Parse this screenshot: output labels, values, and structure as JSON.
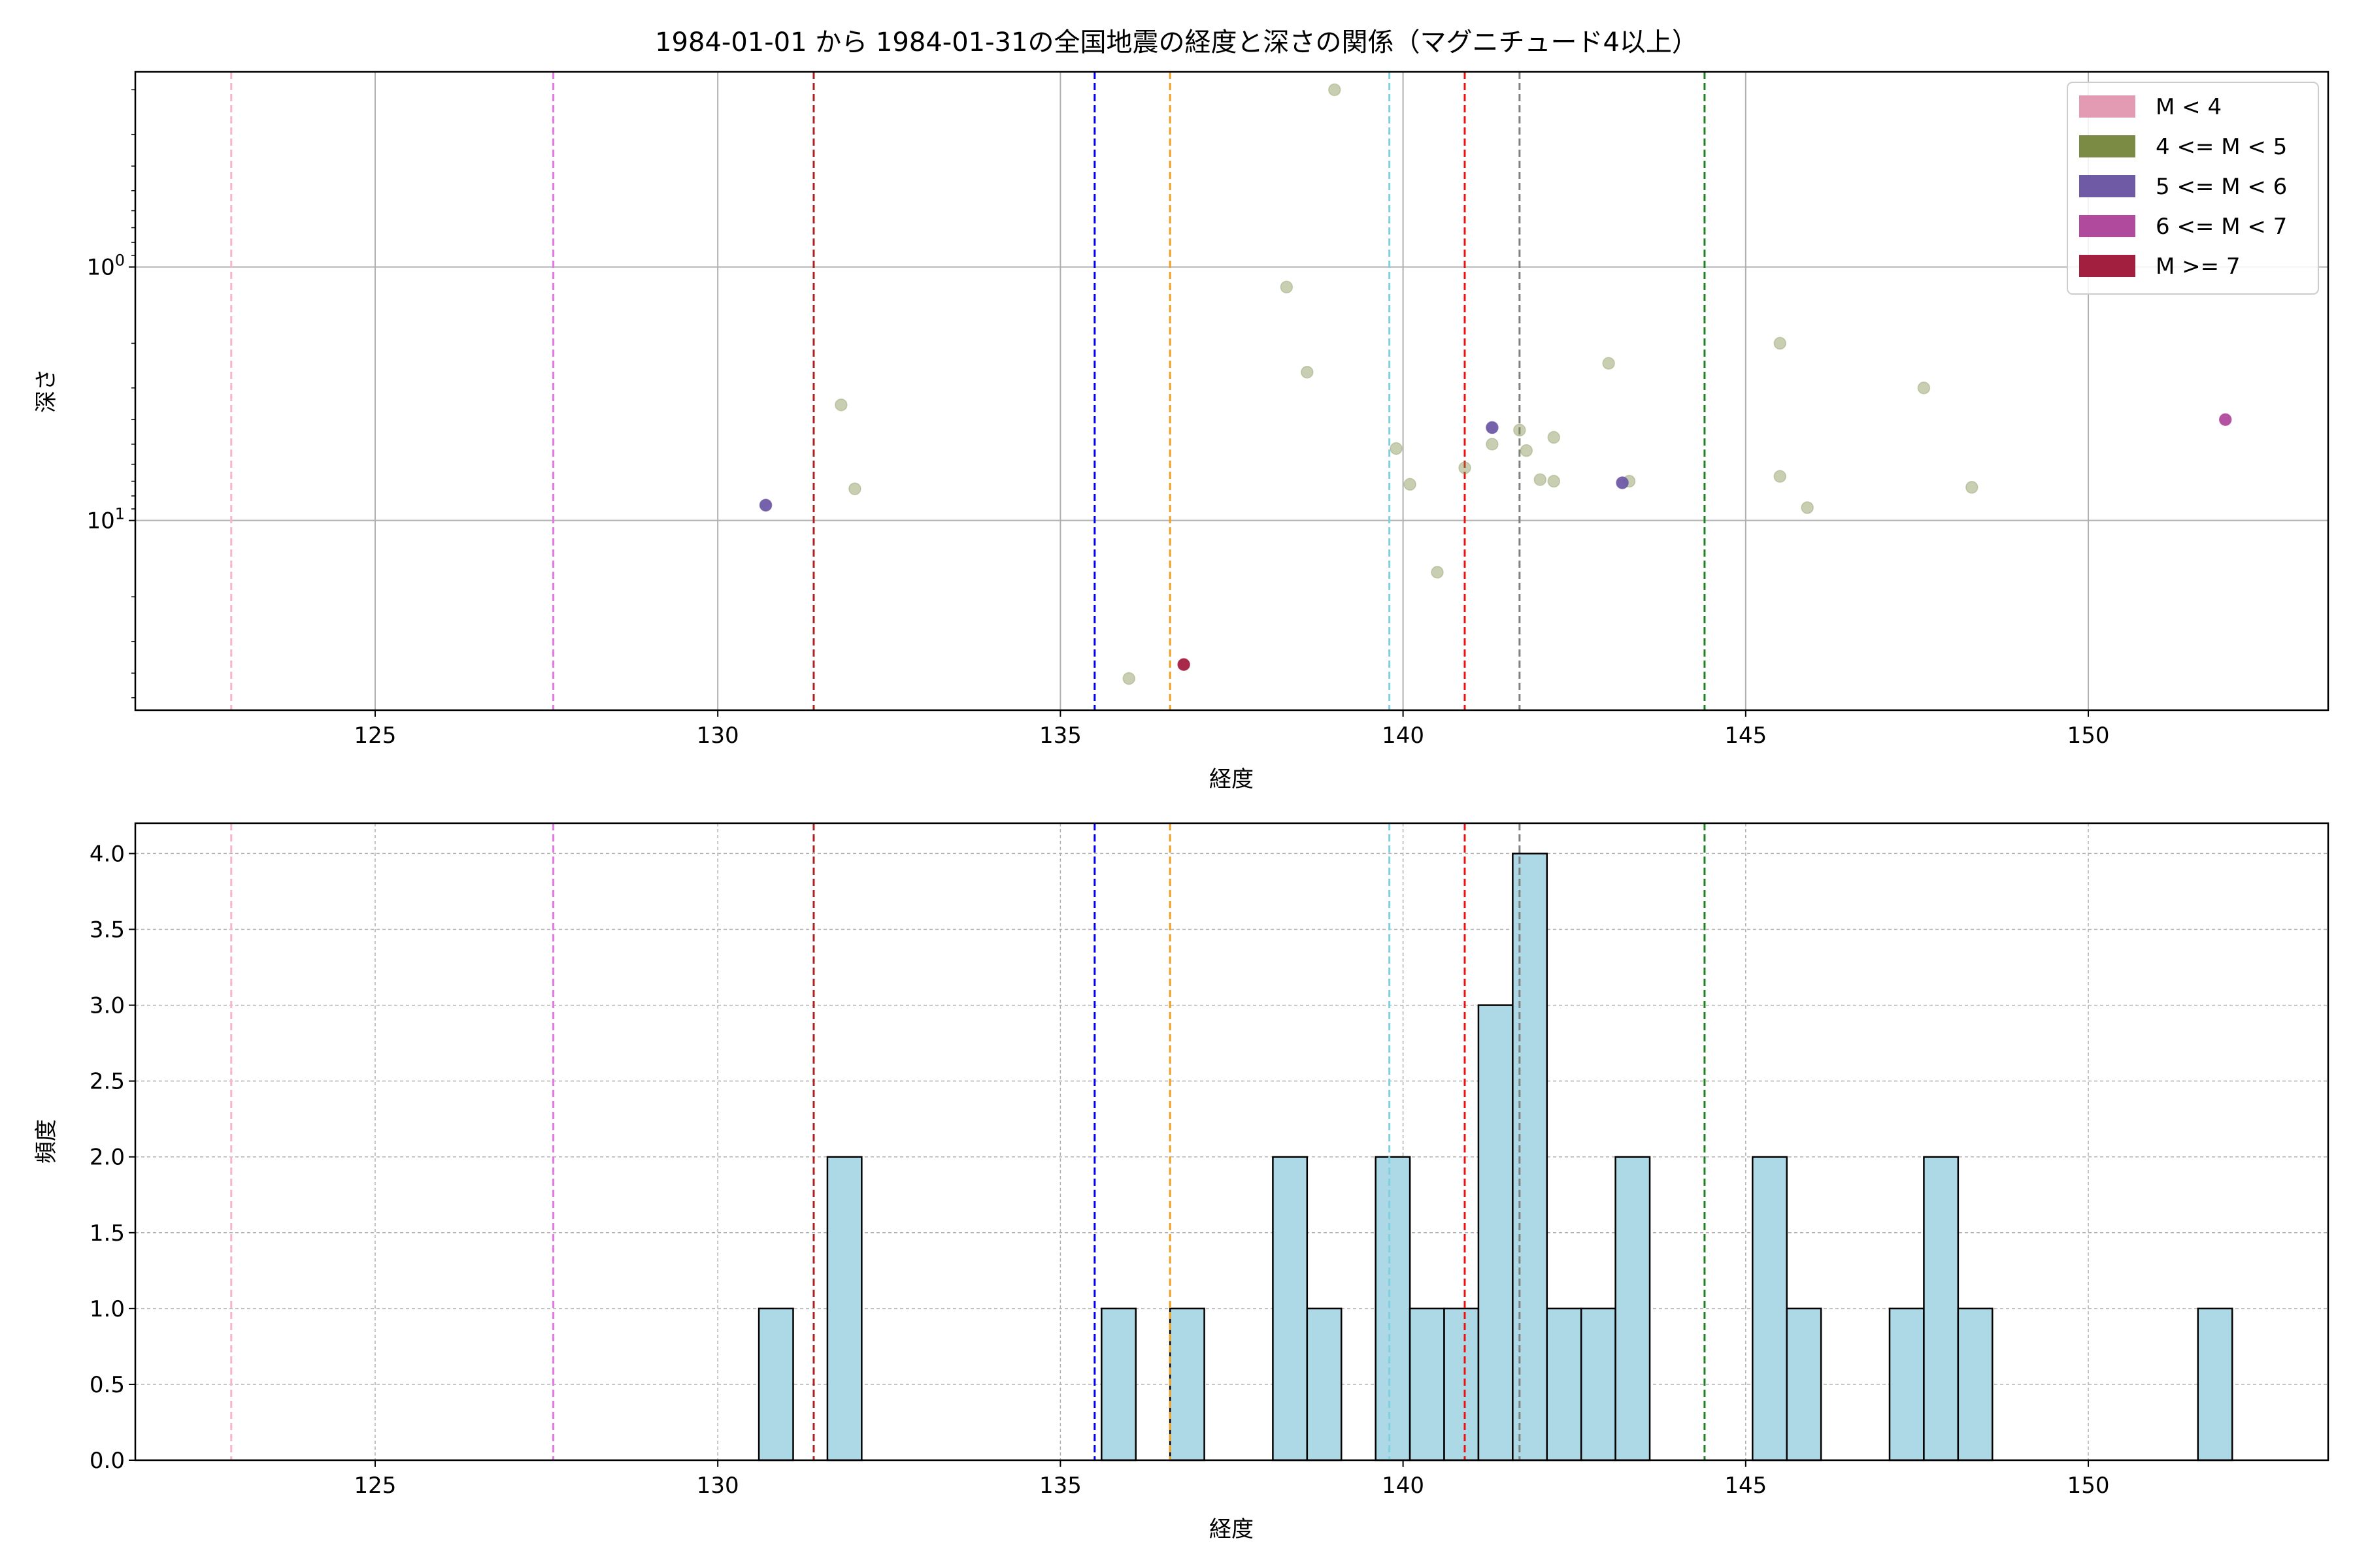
{
  "chart_data": [
    {
      "type": "scatter",
      "title": "1984-01-01 から 1984-01-31の全国地震の経度と深さの関係（マグニチュード4以上）",
      "xlabel": "経度",
      "ylabel": "深さ",
      "xlim": [
        121.5,
        153.5
      ],
      "ylim": [
        56,
        0.17
      ],
      "yscale": "log",
      "y_inverted": true,
      "grid": true,
      "xticks": [
        "125",
        "130",
        "135",
        "140",
        "145",
        "150"
      ],
      "yticks": [
        {
          "value": 1,
          "label": "10^0"
        },
        {
          "value": 10,
          "label": "10^1"
        }
      ],
      "legend": {
        "position": "top-right",
        "entries": [
          {
            "label": "M < 4",
            "color": "#e39ab3"
          },
          {
            "label": "4 <= M < 5",
            "color": "#7b8b44"
          },
          {
            "label": "5 <= M < 6",
            "color": "#6e5aa5"
          },
          {
            "label": "6 <= M < 7",
            "color": "#b04a9d"
          },
          {
            "label": "M >= 7",
            "color": "#a31f40"
          }
        ]
      },
      "vlines": [
        {
          "x": 122.9,
          "color": "#f4b6c8"
        },
        {
          "x": 127.6,
          "color": "#e377e3"
        },
        {
          "x": 131.4,
          "color": "#b02020"
        },
        {
          "x": 135.5,
          "color": "#0000ee"
        },
        {
          "x": 136.6,
          "color": "#f0a020"
        },
        {
          "x": 139.8,
          "color": "#80d0e0"
        },
        {
          "x": 140.9,
          "color": "#ee1010"
        },
        {
          "x": 141.7,
          "color": "#808080"
        },
        {
          "x": 144.4,
          "color": "#208020"
        }
      ],
      "series": [
        {
          "category": "4 <= M < 5",
          "color": "#7b8b44",
          "points": [
            {
              "x": 131.8,
              "y": 3.5
            },
            {
              "x": 132.0,
              "y": 7.5
            },
            {
              "x": 136.0,
              "y": 42
            },
            {
              "x": 138.3,
              "y": 1.2
            },
            {
              "x": 138.6,
              "y": 2.6
            },
            {
              "x": 139.0,
              "y": 0.2
            },
            {
              "x": 139.9,
              "y": 5.2
            },
            {
              "x": 140.1,
              "y": 7.2
            },
            {
              "x": 140.5,
              "y": 16
            },
            {
              "x": 140.9,
              "y": 6.2
            },
            {
              "x": 141.3,
              "y": 5.0
            },
            {
              "x": 141.7,
              "y": 4.4
            },
            {
              "x": 141.8,
              "y": 5.3
            },
            {
              "x": 142.0,
              "y": 6.9
            },
            {
              "x": 142.2,
              "y": 4.7
            },
            {
              "x": 142.2,
              "y": 7.0
            },
            {
              "x": 143.0,
              "y": 2.4
            },
            {
              "x": 143.3,
              "y": 7.0
            },
            {
              "x": 145.5,
              "y": 2.0
            },
            {
              "x": 145.5,
              "y": 6.7
            },
            {
              "x": 145.9,
              "y": 8.9
            },
            {
              "x": 147.6,
              "y": 3.0
            },
            {
              "x": 148.3,
              "y": 7.4
            }
          ]
        },
        {
          "category": "5 <= M < 6",
          "color": "#6e5aa5",
          "points": [
            {
              "x": 130.7,
              "y": 8.7
            },
            {
              "x": 141.3,
              "y": 4.3
            },
            {
              "x": 143.2,
              "y": 7.1
            }
          ]
        },
        {
          "category": "6 <= M < 7",
          "color": "#b04a9d",
          "points": [
            {
              "x": 152.0,
              "y": 4.0
            }
          ]
        },
        {
          "category": "M >= 7",
          "color": "#a31f40",
          "points": [
            {
              "x": 136.8,
              "y": 37
            }
          ]
        }
      ]
    },
    {
      "type": "bar",
      "title": "",
      "xlabel": "経度",
      "ylabel": "頻度",
      "xlim": [
        121.5,
        153.5
      ],
      "ylim": [
        0,
        4.2
      ],
      "grid": true,
      "bar_color": "#add8e6",
      "bin_width": 0.5,
      "xticks": [
        "125",
        "130",
        "135",
        "140",
        "145",
        "150"
      ],
      "yticks": [
        "0.0",
        "0.5",
        "1.0",
        "1.5",
        "2.0",
        "2.5",
        "3.0",
        "3.5",
        "4.0"
      ],
      "vlines": [
        {
          "x": 122.9,
          "color": "#f4b6c8"
        },
        {
          "x": 127.6,
          "color": "#e377e3"
        },
        {
          "x": 131.4,
          "color": "#b02020"
        },
        {
          "x": 135.5,
          "color": "#0000ee"
        },
        {
          "x": 136.6,
          "color": "#f0a020"
        },
        {
          "x": 139.8,
          "color": "#80d0e0"
        },
        {
          "x": 140.9,
          "color": "#ee1010"
        },
        {
          "x": 141.7,
          "color": "#808080"
        },
        {
          "x": 144.4,
          "color": "#208020"
        }
      ],
      "bins": [
        {
          "x": 130.6,
          "value": 1
        },
        {
          "x": 131.6,
          "value": 2
        },
        {
          "x": 135.6,
          "value": 1
        },
        {
          "x": 136.6,
          "value": 1
        },
        {
          "x": 138.1,
          "value": 2
        },
        {
          "x": 138.6,
          "value": 1
        },
        {
          "x": 139.6,
          "value": 2
        },
        {
          "x": 140.1,
          "value": 1
        },
        {
          "x": 140.6,
          "value": 1
        },
        {
          "x": 141.1,
          "value": 3
        },
        {
          "x": 141.6,
          "value": 4
        },
        {
          "x": 142.1,
          "value": 1
        },
        {
          "x": 142.6,
          "value": 1
        },
        {
          "x": 143.1,
          "value": 2
        },
        {
          "x": 145.1,
          "value": 2
        },
        {
          "x": 145.6,
          "value": 1
        },
        {
          "x": 147.1,
          "value": 1
        },
        {
          "x": 147.6,
          "value": 2
        },
        {
          "x": 148.1,
          "value": 1
        },
        {
          "x": 151.6,
          "value": 1
        }
      ]
    }
  ]
}
